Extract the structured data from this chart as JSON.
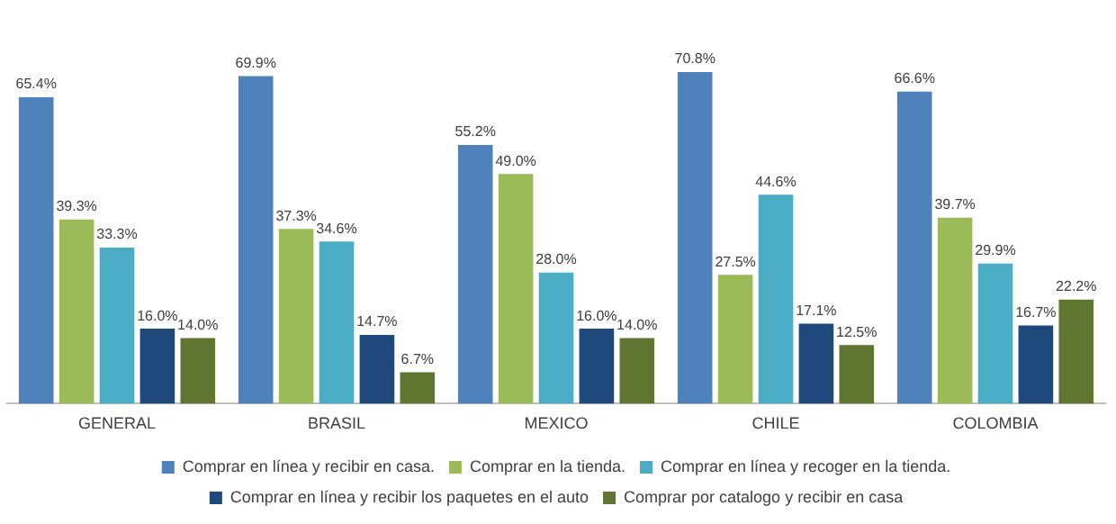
{
  "chart_data": {
    "type": "bar",
    "categories": [
      "GENERAL",
      "BRASIL",
      "MEXICO",
      "CHILE",
      "COLOMBIA"
    ],
    "series": [
      {
        "name": "Comprar en línea y recibir en casa.",
        "color": "#4f81bd",
        "values": [
          65.4,
          69.9,
          55.2,
          70.8,
          66.6
        ],
        "value_labels": [
          "65.4%",
          "69.9%",
          "55.2%",
          "70.8%",
          "66.6%"
        ]
      },
      {
        "name": "Comprar en la tienda.",
        "color": "#9bbb59",
        "values": [
          39.3,
          37.3,
          49.0,
          27.5,
          39.7
        ],
        "value_labels": [
          "39.3%",
          "37.3%",
          "49.0%",
          "27.5%",
          "39.7%"
        ]
      },
      {
        "name": "Comprar en línea y recoger en la tienda.",
        "color": "#4bacc6",
        "values": [
          33.3,
          34.6,
          28.0,
          44.6,
          29.9
        ],
        "value_labels": [
          "33.3%",
          "34.6%",
          "28.0%",
          "44.6%",
          "29.9%"
        ]
      },
      {
        "name": "Comprar en línea y recibir los paquetes en el auto",
        "color": "#1f497d",
        "values": [
          16.0,
          14.7,
          16.0,
          17.1,
          16.7
        ],
        "value_labels": [
          "16.0%",
          "14.7%",
          "16.0%",
          "17.1%",
          "16.7%"
        ]
      },
      {
        "name": "Comprar por catalogo y recibir en casa",
        "color": "#5f7530",
        "values": [
          14.0,
          6.7,
          14.0,
          12.5,
          22.2
        ],
        "value_labels": [
          "14.0%",
          "6.7%",
          "14.0%",
          "12.5%",
          "22.2%"
        ]
      }
    ],
    "grid": false,
    "legend": "bottom",
    "tick_labels": "x"
  }
}
